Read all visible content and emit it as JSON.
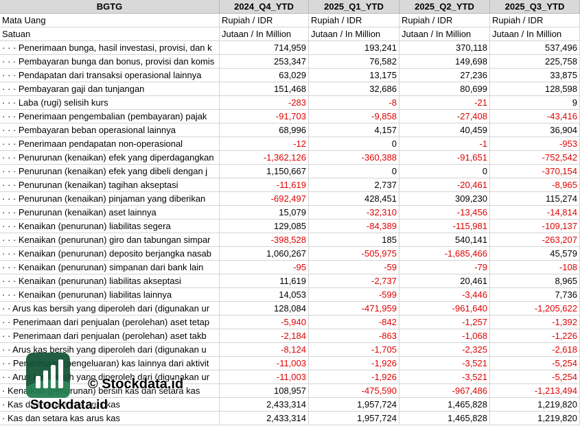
{
  "table": {
    "header": [
      "BGTG",
      "2024_Q4_YTD",
      "2025_Q1_YTD",
      "2025_Q2_YTD",
      "2025_Q3_YTD"
    ],
    "rows": [
      [
        "Mata Uang",
        "Rupiah / IDR",
        "Rupiah / IDR",
        "Rupiah / IDR",
        "Rupiah / IDR"
      ],
      [
        "Satuan",
        "Jutaan / In Million",
        "Jutaan / In Million",
        "Jutaan / In Million",
        "Jutaan / In Million"
      ],
      [
        "· · · Penerimaan bunga, hasil investasi, provisi, dan k",
        "714,959",
        "193,241",
        "370,118",
        "537,496"
      ],
      [
        "· · · Pembayaran bunga dan bonus, provisi dan komis",
        "253,347",
        "76,582",
        "149,698",
        "225,758"
      ],
      [
        "· · · Pendapatan dari transaksi operasional lainnya",
        "63,029",
        "13,175",
        "27,236",
        "33,875"
      ],
      [
        "· · · Pembayaran gaji dan tunjangan",
        "151,468",
        "32,686",
        "80,699",
        "128,598"
      ],
      [
        "· · · Laba (rugi) selisih kurs",
        "-283",
        "-8",
        "-21",
        "9"
      ],
      [
        "· · · Penerimaan pengembalian (pembayaran) pajak",
        "-91,703",
        "-9,858",
        "-27,408",
        "-43,416"
      ],
      [
        "· · · Pembayaran beban operasional lainnya",
        "68,996",
        "4,157",
        "40,459",
        "36,904"
      ],
      [
        "· · · Penerimaan pendapatan non-operasional",
        "-12",
        "0",
        "-1",
        "-953"
      ],
      [
        "· · · Penurunan (kenaikan) efek yang diperdagangkan",
        "-1,362,126",
        "-360,388",
        "-91,651",
        "-752,542"
      ],
      [
        "· · · Penurunan (kenaikan) efek yang dibeli dengan j",
        "1,150,667",
        "0",
        "0",
        "-370,154"
      ],
      [
        "· · · Penurunan (kenaikan) tagihan akseptasi",
        "-11,619",
        "2,737",
        "-20,461",
        "-8,965"
      ],
      [
        "· · · Penurunan (kenaikan) pinjaman yang diberikan",
        "-692,497",
        "428,451",
        "309,230",
        "115,274"
      ],
      [
        "· · · Penurunan (kenaikan) aset lainnya",
        "15,079",
        "-32,310",
        "-13,456",
        "-14,814"
      ],
      [
        "· · · Kenaikan (penurunan) liabilitas segera",
        "129,085",
        "-84,389",
        "-115,981",
        "-109,137"
      ],
      [
        "· · · Kenaikan (penurunan) giro dan tabungan simpar",
        "-398,528",
        "185",
        "540,141",
        "-263,207"
      ],
      [
        "· · · Kenaikan (penurunan) deposito berjangka nasab",
        "1,060,267",
        "-505,975",
        "-1,685,466",
        "45,579"
      ],
      [
        "· · · Kenaikan (penurunan) simpanan dari bank lain",
        "-95",
        "-59",
        "-79",
        "-108"
      ],
      [
        "· · · Kenaikan (penurunan) liabilitas akseptasi",
        "11,619",
        "-2,737",
        "20,461",
        "8,965"
      ],
      [
        "· · · Kenaikan (penurunan) liabilitas lainnya",
        "14,053",
        "-599",
        "-3,446",
        "7,736"
      ],
      [
        "· · Arus kas bersih yang diperoleh dari (digunakan ur",
        "128,084",
        "-471,959",
        "-961,640",
        "-1,205,622"
      ],
      [
        "· · Penerimaan dari penjualan (perolehan) aset tetap",
        "-5,940",
        "-842",
        "-1,257",
        "-1,392"
      ],
      [
        "· · Penerimaan dari penjualan (perolehan) aset takb",
        "-2,184",
        "-863",
        "-1,068",
        "-1,226"
      ],
      [
        "· · Arus kas bersih yang diperoleh dari (digunakan u",
        "-8,124",
        "-1,705",
        "-2,325",
        "-2,618"
      ],
      [
        "· · Penerimaan (pengeluaran) kas lainnya dari aktivit",
        "-11,003",
        "-1,926",
        "-3,521",
        "-5,254"
      ],
      [
        "· · Arus kas bersih yang diperoleh dari (digunakan ur",
        "-11,003",
        "-1,926",
        "-3,521",
        "-5,254"
      ],
      [
        "· Kenaikan (penurunan) bersih kas dan setara kas",
        "108,957",
        "-475,590",
        "-967,486",
        "-1,213,494"
      ],
      [
        "· Kas dan setara kas arus kas",
        "2,433,314",
        "1,957,724",
        "1,465,828",
        "1,219,820"
      ],
      [
        "· Kas dan setara kas arus kas",
        "2,433,314",
        "1,957,724",
        "1,465,828",
        "1,219,820"
      ]
    ]
  },
  "watermark": {
    "copyright": "© Stockdata.id",
    "brand": "Stockdata.id"
  }
}
